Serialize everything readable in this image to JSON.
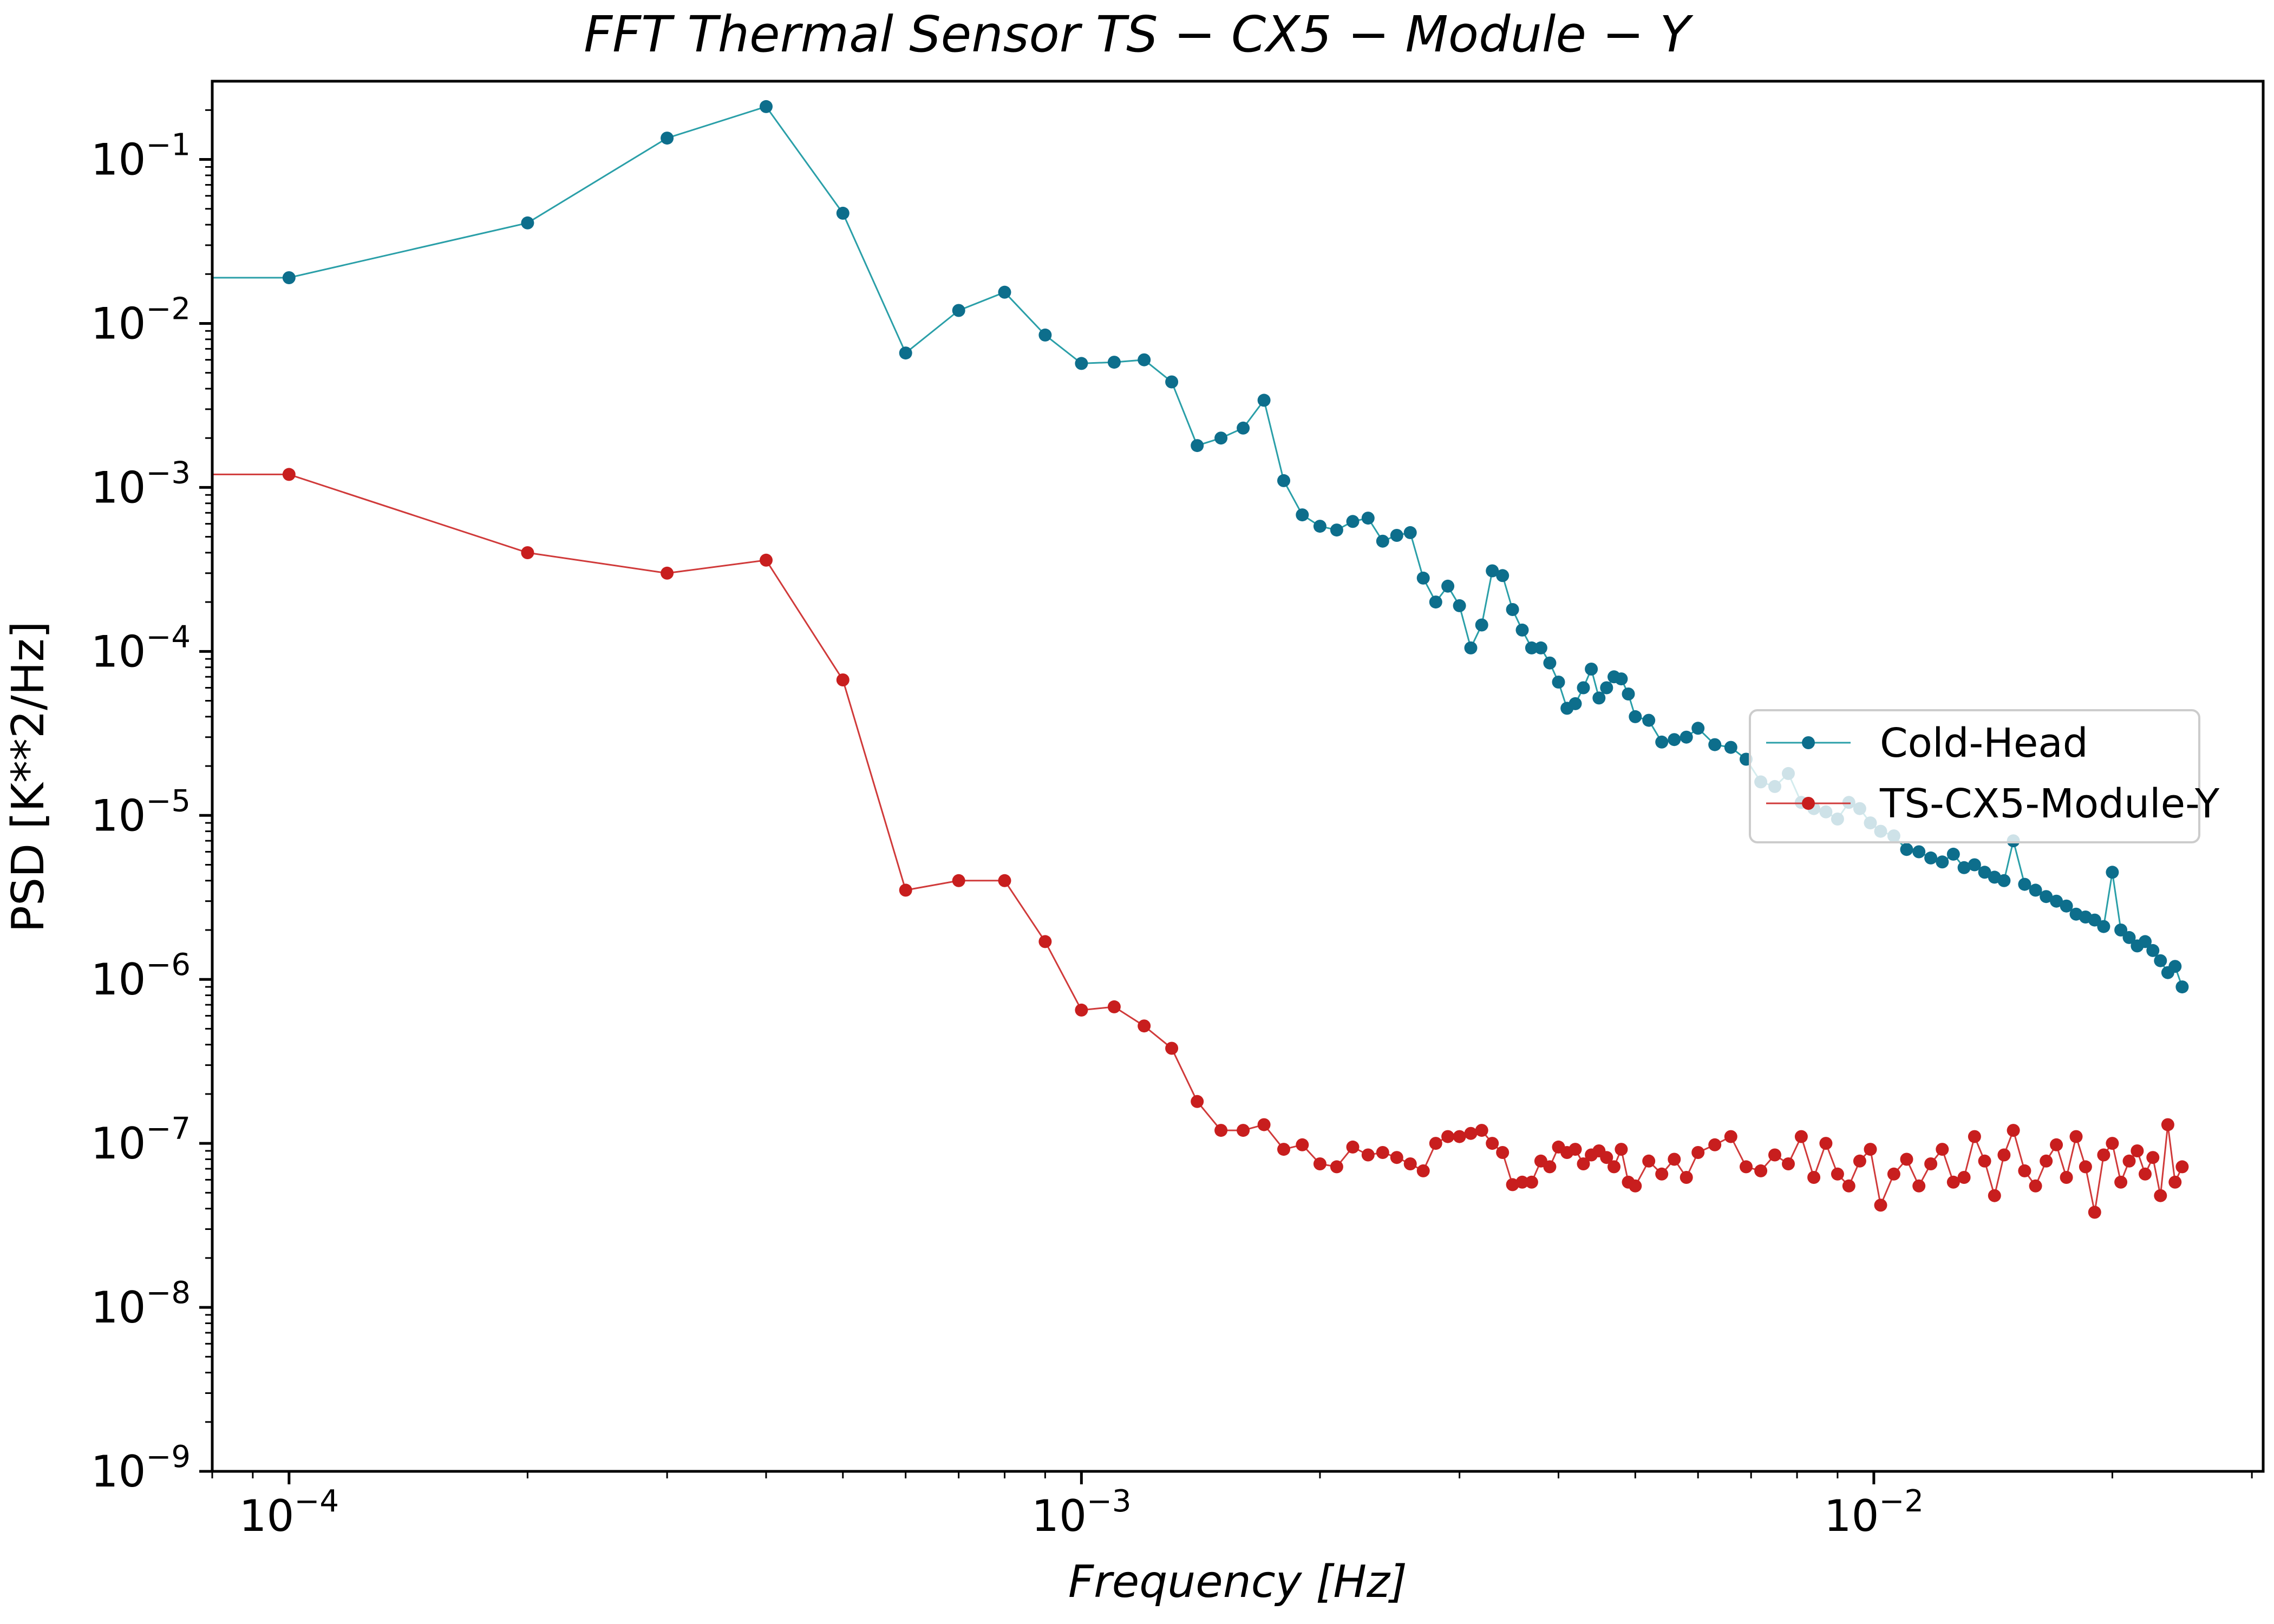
{
  "chart_data": {
    "type": "line",
    "title": "FFT Thermal Sensor TS − CX5 − Module − Y",
    "xlabel": "Frequency [Hz]",
    "ylabel": "PSD [K**2/Hz]",
    "xscale": "log",
    "yscale": "log",
    "xlim": [
      8e-05,
      0.031
    ],
    "ylim": [
      1e-09,
      0.3
    ],
    "x_ticks": [
      {
        "value": 0.0001,
        "base": "10",
        "exp": "−4"
      },
      {
        "value": 0.001,
        "base": "10",
        "exp": "−3"
      },
      {
        "value": 0.01,
        "base": "10",
        "exp": "−2"
      }
    ],
    "y_ticks": [
      {
        "value": 1e-09,
        "base": "10",
        "exp": "−9"
      },
      {
        "value": 1e-08,
        "base": "10",
        "exp": "−8"
      },
      {
        "value": 1e-07,
        "base": "10",
        "exp": "−7"
      },
      {
        "value": 1e-06,
        "base": "10",
        "exp": "−6"
      },
      {
        "value": 1e-05,
        "base": "10",
        "exp": "−5"
      },
      {
        "value": 0.0001,
        "base": "10",
        "exp": "−4"
      },
      {
        "value": 0.001,
        "base": "10",
        "exp": "−3"
      },
      {
        "value": 0.01,
        "base": "10",
        "exp": "−2"
      },
      {
        "value": 0.1,
        "base": "10",
        "exp": "−1"
      }
    ],
    "grid": false,
    "legend": "center-right",
    "series": [
      {
        "name": "Cold-Head",
        "line_color": "#2a9fa8",
        "marker_color": "#0d6e8c",
        "x": [
          0.0001,
          0.0002,
          0.0003,
          0.0004,
          0.0005,
          0.0006,
          0.0007,
          0.0008,
          0.0009,
          0.001,
          0.0011,
          0.0012,
          0.0013,
          0.0014,
          0.0015,
          0.0016,
          0.0017,
          0.0018,
          0.0019,
          0.002,
          0.0021,
          0.0022,
          0.0023,
          0.0024,
          0.0025,
          0.0026,
          0.0027,
          0.0028,
          0.0029,
          0.003,
          0.0031,
          0.0032,
          0.0033,
          0.0034,
          0.0035,
          0.0036,
          0.0037,
          0.0038,
          0.0039,
          0.004,
          0.0041,
          0.0042,
          0.0043,
          0.0044,
          0.0045,
          0.0046,
          0.0047,
          0.0048,
          0.0049,
          0.005,
          0.0052,
          0.0054,
          0.0056,
          0.0058,
          0.006,
          0.0063,
          0.0066,
          0.0069,
          0.0072,
          0.0075,
          0.0078,
          0.0081,
          0.0084,
          0.0087,
          0.009,
          0.0093,
          0.0096,
          0.0099,
          0.0102,
          0.0106,
          0.011,
          0.0114,
          0.0118,
          0.0122,
          0.0126,
          0.013,
          0.0134,
          0.0138,
          0.0142,
          0.0146,
          0.015,
          0.0155,
          0.016,
          0.0165,
          0.017,
          0.0175,
          0.018,
          0.0185,
          0.019,
          0.0195,
          0.02,
          0.0205,
          0.021,
          0.0215,
          0.022,
          0.0225,
          0.023,
          0.0235,
          0.024,
          0.0245
        ],
        "y": [
          0.019,
          0.041,
          0.135,
          0.21,
          0.047,
          0.0066,
          0.012,
          0.0155,
          0.0085,
          0.0057,
          0.0058,
          0.006,
          0.0044,
          0.0018,
          0.002,
          0.0023,
          0.0034,
          0.0011,
          0.00068,
          0.00058,
          0.00055,
          0.00062,
          0.00065,
          0.00047,
          0.00051,
          0.00053,
          0.00028,
          0.0002,
          0.00025,
          0.00019,
          0.000105,
          0.000145,
          0.00031,
          0.00029,
          0.00018,
          0.000135,
          0.000105,
          0.000105,
          8.5e-05,
          6.5e-05,
          4.5e-05,
          4.8e-05,
          6e-05,
          7.8e-05,
          5.2e-05,
          6e-05,
          7e-05,
          6.8e-05,
          5.5e-05,
          4e-05,
          3.8e-05,
          2.8e-05,
          2.9e-05,
          3e-05,
          3.4e-05,
          2.7e-05,
          2.6e-05,
          2.2e-05,
          1.6e-05,
          1.5e-05,
          1.8e-05,
          1.2e-05,
          1.1e-05,
          1.05e-05,
          9.5e-06,
          1.2e-05,
          1.1e-05,
          9e-06,
          8e-06,
          7.5e-06,
          6.2e-06,
          6e-06,
          5.5e-06,
          5.2e-06,
          5.8e-06,
          4.8e-06,
          5e-06,
          4.5e-06,
          4.2e-06,
          4e-06,
          7e-06,
          3.8e-06,
          3.5e-06,
          3.2e-06,
          3e-06,
          2.8e-06,
          2.5e-06,
          2.4e-06,
          2.3e-06,
          2.1e-06,
          4.5e-06,
          2e-06,
          1.8e-06,
          1.6e-06,
          1.7e-06,
          1.5e-06,
          1.3e-06,
          1.1e-06,
          1.2e-06,
          9e-07
        ]
      },
      {
        "name": "TS-CX5-Module-Y",
        "line_color": "#d03a3a",
        "marker_color": "#c81e1e",
        "x": [
          0.0001,
          0.0002,
          0.0003,
          0.0004,
          0.0005,
          0.0006,
          0.0007,
          0.0008,
          0.0009,
          0.001,
          0.0011,
          0.0012,
          0.0013,
          0.0014,
          0.0015,
          0.0016,
          0.0017,
          0.0018,
          0.0019,
          0.002,
          0.0021,
          0.0022,
          0.0023,
          0.0024,
          0.0025,
          0.0026,
          0.0027,
          0.0028,
          0.0029,
          0.003,
          0.0031,
          0.0032,
          0.0033,
          0.0034,
          0.0035,
          0.0036,
          0.0037,
          0.0038,
          0.0039,
          0.004,
          0.0041,
          0.0042,
          0.0043,
          0.0044,
          0.0045,
          0.0046,
          0.0047,
          0.0048,
          0.0049,
          0.005,
          0.0052,
          0.0054,
          0.0056,
          0.0058,
          0.006,
          0.0063,
          0.0066,
          0.0069,
          0.0072,
          0.0075,
          0.0078,
          0.0081,
          0.0084,
          0.0087,
          0.009,
          0.0093,
          0.0096,
          0.0099,
          0.0102,
          0.0106,
          0.011,
          0.0114,
          0.0118,
          0.0122,
          0.0126,
          0.013,
          0.0134,
          0.0138,
          0.0142,
          0.0146,
          0.015,
          0.0155,
          0.016,
          0.0165,
          0.017,
          0.0175,
          0.018,
          0.0185,
          0.019,
          0.0195,
          0.02,
          0.0205,
          0.021,
          0.0215,
          0.022,
          0.0225,
          0.023,
          0.0235,
          0.024,
          0.0245
        ],
        "y": [
          0.0012,
          0.0004,
          0.0003,
          0.00036,
          6.7e-05,
          3.5e-06,
          4e-06,
          4e-06,
          1.7e-06,
          6.5e-07,
          6.8e-07,
          5.2e-07,
          3.8e-07,
          1.8e-07,
          1.2e-07,
          1.2e-07,
          1.3e-07,
          9.2e-08,
          9.8e-08,
          7.5e-08,
          7.2e-08,
          9.5e-08,
          8.5e-08,
          8.8e-08,
          8.2e-08,
          7.5e-08,
          6.8e-08,
          1e-07,
          1.1e-07,
          1.1e-07,
          1.15e-07,
          1.2e-07,
          1e-07,
          8.8e-08,
          5.6e-08,
          5.8e-08,
          5.8e-08,
          7.8e-08,
          7.2e-08,
          9.5e-08,
          8.8e-08,
          9.2e-08,
          7.5e-08,
          8.5e-08,
          9e-08,
          8.2e-08,
          7.2e-08,
          9.2e-08,
          5.8e-08,
          5.5e-08,
          7.8e-08,
          6.5e-08,
          8e-08,
          6.2e-08,
          8.8e-08,
          9.8e-08,
          1.1e-07,
          7.2e-08,
          6.8e-08,
          8.5e-08,
          7.5e-08,
          1.1e-07,
          6.2e-08,
          1e-07,
          6.5e-08,
          5.5e-08,
          7.8e-08,
          9.2e-08,
          4.2e-08,
          6.5e-08,
          8e-08,
          5.5e-08,
          7.5e-08,
          9.2e-08,
          5.8e-08,
          6.2e-08,
          1.1e-07,
          7.8e-08,
          4.8e-08,
          8.5e-08,
          1.2e-07,
          6.8e-08,
          5.5e-08,
          7.8e-08,
          9.8e-08,
          6.2e-08,
          1.1e-07,
          7.2e-08,
          3.8e-08,
          8.5e-08,
          1e-07,
          5.8e-08,
          7.8e-08,
          9e-08,
          6.5e-08,
          8.2e-08,
          4.8e-08,
          1.3e-07,
          5.8e-08,
          7.2e-08
        ]
      }
    ]
  }
}
